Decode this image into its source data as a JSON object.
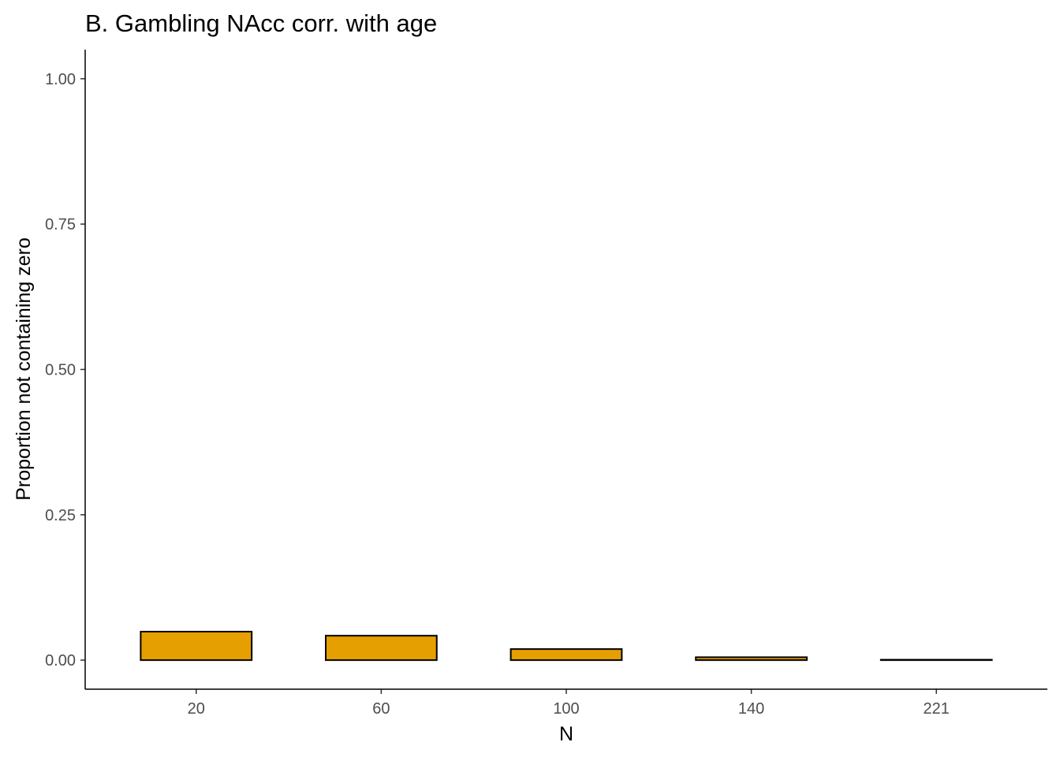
{
  "chart_data": {
    "type": "bar",
    "title": "B. Gambling NAcc corr. with age",
    "xlabel": "N",
    "ylabel": "Proportion not containing zero",
    "categories": [
      "20",
      "60",
      "100",
      "140",
      "221"
    ],
    "values": [
      0.049,
      0.042,
      0.019,
      0.005,
      0.0
    ],
    "ylim": [
      -0.05,
      1.05
    ],
    "yticks": [
      0.0,
      0.25,
      0.5,
      0.75,
      1.0
    ],
    "ytick_labels": [
      "0.00",
      "0.25",
      "0.50",
      "0.75",
      "1.00"
    ],
    "grid": false,
    "legend": "none",
    "colors": {
      "bar_fill": "#E69F00",
      "bar_stroke": "#000000",
      "axis": "#000000"
    }
  }
}
